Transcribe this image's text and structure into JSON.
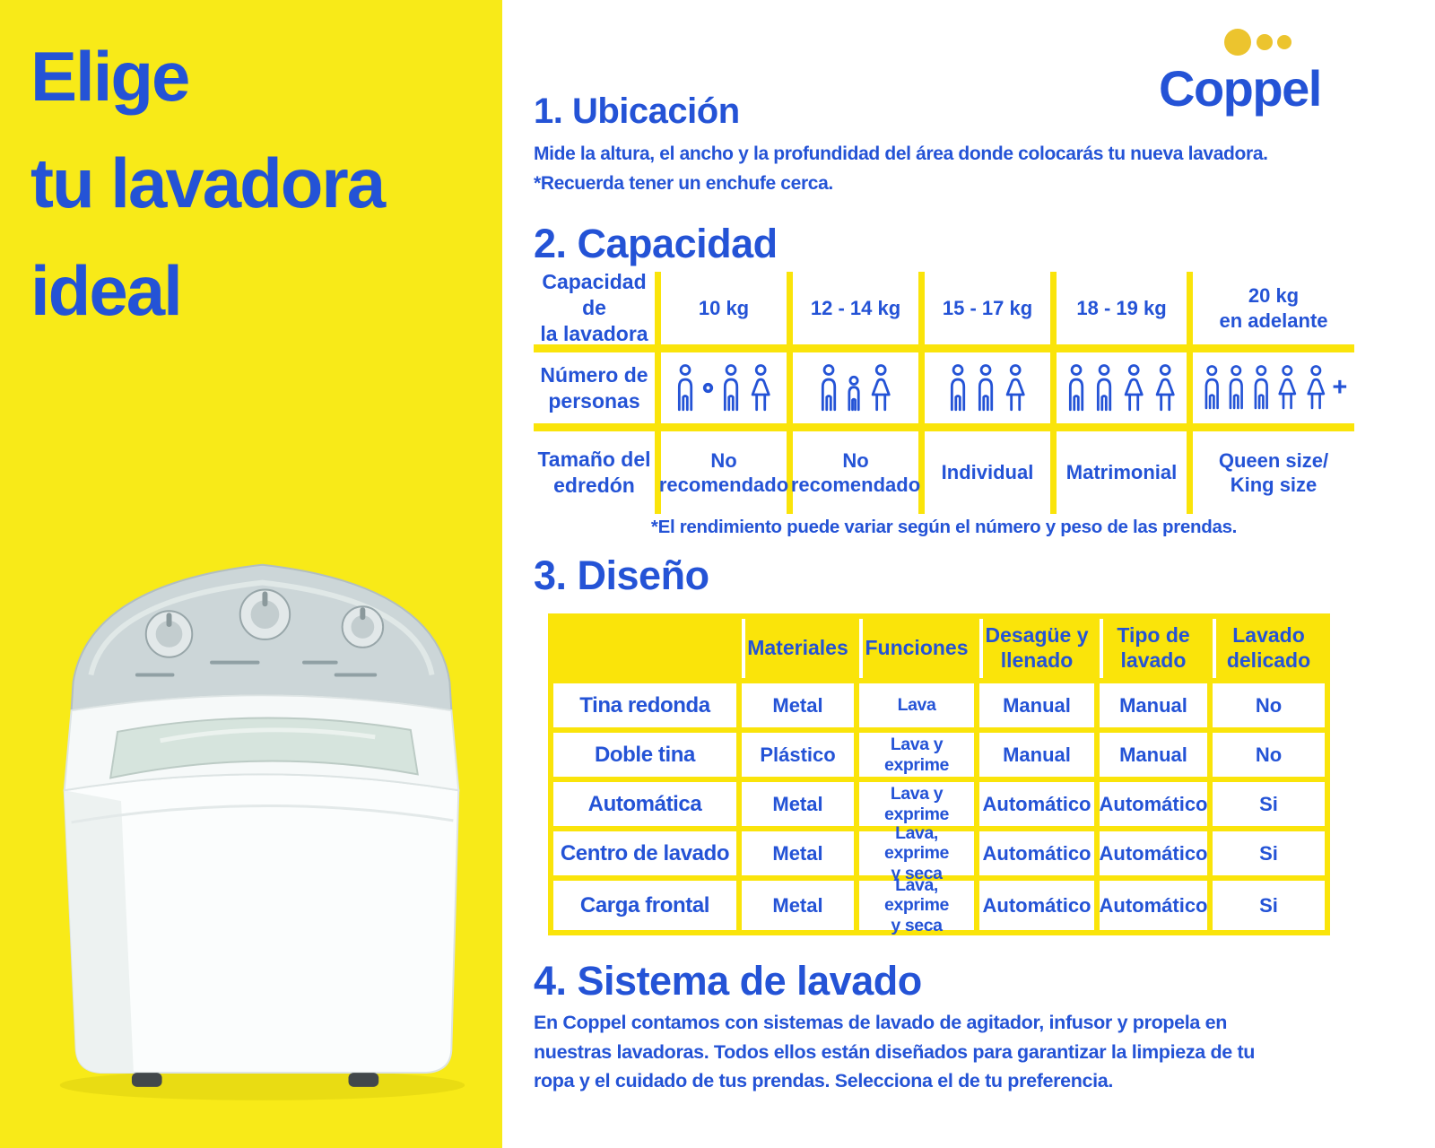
{
  "colors": {
    "yellow": "#F8EA18",
    "grid-yellow": "#FAE40A",
    "blue": "#2453D6",
    "gold": "#ECC42E"
  },
  "title_panel": {
    "title": "Elige\ntu lavadora\nideal"
  },
  "logo": {
    "text": "Coppel"
  },
  "sections": {
    "ubicacion": {
      "title": "1. Ubicación",
      "body": "Mide la altura, el ancho y la profundidad del área donde colocarás tu nueva lavadora.\n*Recuerda tener un enchufe cerca."
    },
    "capacidad": {
      "title": "2. Capacidad",
      "footnote": "*El rendimiento puede variar según el número y peso de las prendas."
    },
    "diseno": {
      "title": "3. Diseño"
    },
    "sistema": {
      "title": "4. Sistema de lavado",
      "body": "En Coppel contamos con sistemas de lavado de agitador, infusor y propela en\nnuestras lavadoras. Todos ellos están diseñados para garantizar la limpieza de tu\nropa y el cuidado de tus prendas. Selecciona el de tu preferencia."
    }
  },
  "capacity_table": {
    "row_labels": [
      "Capacidad de\nla lavadora",
      "Número de\npersonas",
      "Tamaño del\nedredón"
    ],
    "capacities": [
      "10 kg",
      "12 - 14 kg",
      "15 - 17 kg",
      "18 - 19 kg",
      "20 kg\nen adelante"
    ],
    "people_icons": [
      [
        "man",
        "or",
        "man",
        "woman"
      ],
      [
        "man",
        "child",
        "woman"
      ],
      [
        "man",
        "man",
        "woman"
      ],
      [
        "man",
        "man",
        "woman",
        "woman"
      ],
      [
        "man",
        "man",
        "man",
        "woman",
        "woman",
        "plus"
      ]
    ],
    "comforter_sizes": [
      "No\nrecomendado",
      "No\nrecomendado",
      "Individual",
      "Matrimonial",
      "Queen size/\nKing size"
    ]
  },
  "design_table": {
    "corner": "",
    "column_headers": [
      "Materiales",
      "Funciones",
      "Desagüe y\nllenado",
      "Tipo de\nlavado",
      "Lavado\ndelicado"
    ],
    "rows": [
      {
        "label": "Tina redonda",
        "cells": [
          "Metal",
          "Lava",
          "Manual",
          "Manual",
          "No"
        ]
      },
      {
        "label": "Doble tina",
        "cells": [
          "Plástico",
          "Lava y\nexprime",
          "Manual",
          "Manual",
          "No"
        ]
      },
      {
        "label": "Automática",
        "cells": [
          "Metal",
          "Lava y\nexprime",
          "Automático",
          "Automático",
          "Si"
        ]
      },
      {
        "label": "Centro de lavado",
        "cells": [
          "Metal",
          "Lava, exprime\ny seca",
          "Automático",
          "Automático",
          "Si"
        ]
      },
      {
        "label": "Carga frontal",
        "cells": [
          "Metal",
          "Lava, exprime\ny seca",
          "Automático",
          "Automático",
          "Si"
        ]
      }
    ]
  }
}
